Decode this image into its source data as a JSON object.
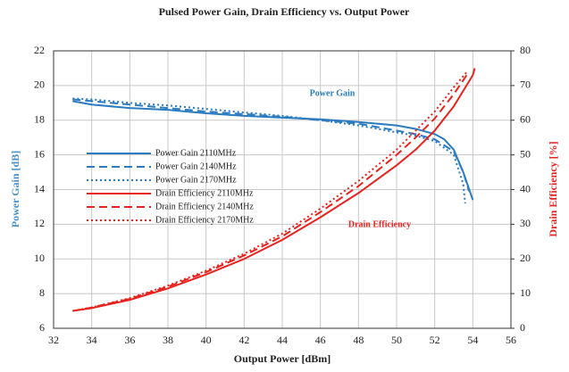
{
  "chart_data": {
    "type": "line",
    "title": "Pulsed Power Gain, Drain Efficiency vs. Output Power",
    "x_label": "Output Power [dBm]",
    "y_label": "Power Gain [dB]",
    "y2_label": "Drain Efficiency [%]",
    "y_label_color": "#4a90c8",
    "y2_label_color": "#e8231e",
    "xlim": [
      32,
      56
    ],
    "xticks": [
      32,
      34,
      36,
      38,
      40,
      42,
      44,
      46,
      48,
      50,
      52,
      54,
      56
    ],
    "ylim": [
      6,
      22
    ],
    "yticks": [
      6,
      8,
      10,
      12,
      14,
      16,
      18,
      20,
      22
    ],
    "y2lim": [
      0,
      80
    ],
    "y2ticks": [
      0,
      10,
      20,
      30,
      40,
      50,
      60,
      70,
      80
    ],
    "grid": true,
    "legend": "left",
    "annotations": [
      {
        "text": "Power Gain",
        "color": "#2a7bc0"
      },
      {
        "text": "Drain Efficiency",
        "color": "#e8231e"
      }
    ],
    "series": [
      {
        "name": "Power Gain 2110MHz",
        "color": "#2a7bc0",
        "dash": "solid",
        "axis": "y",
        "x": [
          33,
          34,
          36,
          38,
          40,
          42,
          44,
          46,
          48,
          50,
          51,
          52,
          52.5,
          53,
          53.5,
          54
        ],
        "values": [
          19.1,
          18.9,
          18.7,
          18.6,
          18.4,
          18.25,
          18.15,
          18.05,
          17.9,
          17.7,
          17.5,
          17.2,
          16.9,
          16.3,
          15,
          13.4
        ]
      },
      {
        "name": "Power Gain 2140MHz",
        "color": "#2a7bc0",
        "dash": "dashed",
        "axis": "y",
        "x": [
          33,
          34,
          36,
          38,
          40,
          42,
          44,
          46,
          48,
          50,
          51,
          52,
          53,
          53.5,
          53.8
        ],
        "values": [
          19.2,
          19.1,
          18.9,
          18.7,
          18.5,
          18.35,
          18.2,
          18,
          17.8,
          17.4,
          17.2,
          16.9,
          16.2,
          15,
          13.9
        ]
      },
      {
        "name": "Power Gain 2170MHz",
        "color": "#2a7bc0",
        "dash": "dotted",
        "axis": "y",
        "x": [
          33,
          34,
          36,
          38,
          40,
          42,
          44,
          46,
          48,
          50,
          51,
          52,
          53,
          53.5,
          53.6
        ],
        "values": [
          19.25,
          19.2,
          19,
          18.85,
          18.65,
          18.45,
          18.25,
          18,
          17.7,
          17.3,
          17.1,
          16.8,
          16,
          14.3,
          13.2
        ]
      },
      {
        "name": "Drain Efficiency 2110MHz",
        "color": "#e8231e",
        "dash": "solid",
        "axis": "y2",
        "x": [
          33,
          34,
          36,
          38,
          40,
          42,
          44,
          46,
          48,
          50,
          51,
          52,
          53,
          54,
          54.1
        ],
        "values": [
          5,
          5.8,
          8.2,
          11.5,
          15.5,
          20,
          25.5,
          32,
          39,
          47,
          51.5,
          57,
          64,
          73,
          75
        ]
      },
      {
        "name": "Drain Efficiency 2140MHz",
        "color": "#e8231e",
        "dash": "dashed",
        "axis": "y2",
        "x": [
          33,
          34,
          36,
          38,
          40,
          42,
          44,
          46,
          48,
          50,
          51,
          52,
          53,
          53.8
        ],
        "values": [
          5,
          6,
          8.5,
          12,
          16.2,
          21,
          26.5,
          33.5,
          41,
          50,
          55,
          60.5,
          67.5,
          74
        ]
      },
      {
        "name": "Drain Efficiency 2170MHz",
        "color": "#e8231e",
        "dash": "dotted",
        "axis": "y2",
        "x": [
          33,
          34,
          36,
          38,
          40,
          42,
          44,
          46,
          48,
          50,
          51,
          52,
          53,
          53.7
        ],
        "values": [
          5,
          6,
          8.7,
          12.3,
          16.6,
          21.5,
          27.3,
          34.5,
          42.5,
          51.5,
          57,
          62.5,
          69.5,
          74
        ]
      }
    ]
  }
}
